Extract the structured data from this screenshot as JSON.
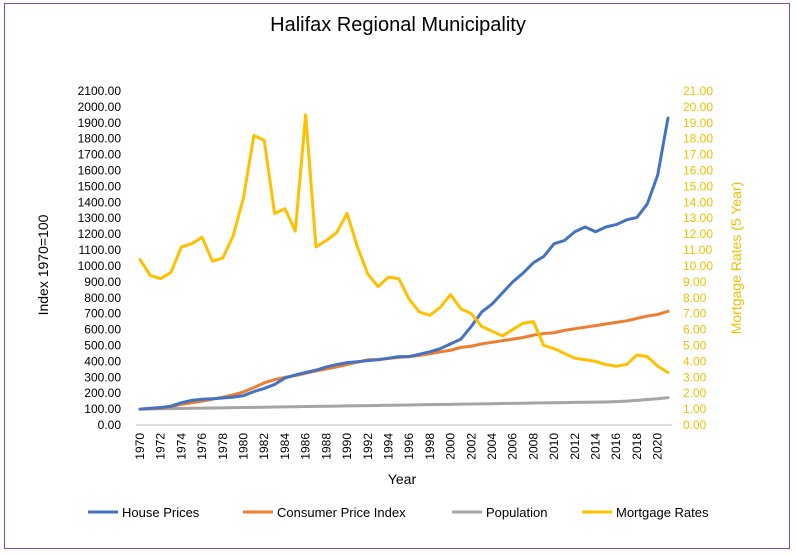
{
  "chart_data": {
    "type": "line",
    "title": "Halifax Regional Municipality",
    "xlabel": "Year",
    "ylabel": "Index 1970=100",
    "y2label": "Mortgage Rates (5 Year)",
    "ylim": [
      0,
      2100
    ],
    "y2lim": [
      0,
      21
    ],
    "yticks": [
      "0.00",
      "100.00",
      "200.00",
      "300.00",
      "400.00",
      "500.00",
      "600.00",
      "700.00",
      "800.00",
      "900.00",
      "1000.00",
      "1100.00",
      "1200.00",
      "1300.00",
      "1400.00",
      "1500.00",
      "1600.00",
      "1700.00",
      "1800.00",
      "1900.00",
      "2000.00",
      "2100.00"
    ],
    "y2ticks": [
      "0.00",
      "1.00",
      "2.00",
      "3.00",
      "4.00",
      "5.00",
      "6.00",
      "7.00",
      "8.00",
      "9.00",
      "10.00",
      "11.00",
      "12.00",
      "13.00",
      "14.00",
      "15.00",
      "16.00",
      "17.00",
      "18.00",
      "19.00",
      "20.00",
      "21.00"
    ],
    "xticks": [
      "1970",
      "1972",
      "1974",
      "1976",
      "1978",
      "1980",
      "1982",
      "1984",
      "1986",
      "1988",
      "1990",
      "1992",
      "1994",
      "1996",
      "1998",
      "2000",
      "2002",
      "2004",
      "2006",
      "2008",
      "2010",
      "2012",
      "2014",
      "2016",
      "2018",
      "2020"
    ],
    "x": [
      1970,
      1971,
      1972,
      1973,
      1974,
      1975,
      1976,
      1977,
      1978,
      1979,
      1980,
      1981,
      1982,
      1983,
      1984,
      1985,
      1986,
      1987,
      1988,
      1989,
      1990,
      1991,
      1992,
      1993,
      1994,
      1995,
      1996,
      1997,
      1998,
      1999,
      2000,
      2001,
      2002,
      2003,
      2004,
      2005,
      2006,
      2007,
      2008,
      2009,
      2010,
      2011,
      2012,
      2013,
      2014,
      2015,
      2016,
      2017,
      2018,
      2019,
      2020,
      2021
    ],
    "legend_position": "bottom",
    "grid": false,
    "series": [
      {
        "name": "House Prices",
        "axis": "left",
        "color": "#4472c4",
        "values": [
          100,
          105,
          110,
          118,
          140,
          155,
          162,
          165,
          170,
          175,
          185,
          210,
          230,
          255,
          295,
          315,
          330,
          345,
          365,
          380,
          392,
          398,
          405,
          410,
          420,
          430,
          430,
          445,
          460,
          480,
          510,
          540,
          620,
          710,
          760,
          830,
          900,
          955,
          1020,
          1060,
          1140,
          1160,
          1215,
          1245,
          1215,
          1245,
          1260,
          1290,
          1305,
          1390,
          1570,
          1930
        ]
      },
      {
        "name": "Consumer Price Index",
        "axis": "left",
        "color": "#ed7d31",
        "values": [
          100,
          103,
          108,
          115,
          130,
          140,
          150,
          162,
          175,
          190,
          208,
          235,
          265,
          285,
          300,
          310,
          325,
          340,
          352,
          365,
          380,
          395,
          410,
          412,
          418,
          425,
          430,
          438,
          448,
          460,
          470,
          488,
          495,
          510,
          520,
          530,
          540,
          550,
          565,
          575,
          580,
          595,
          605,
          615,
          625,
          635,
          645,
          655,
          670,
          685,
          695,
          715
        ]
      },
      {
        "name": "Population",
        "axis": "left",
        "color": "#a5a5a5",
        "values": [
          100,
          101,
          102,
          103,
          104,
          105,
          106,
          107,
          108,
          109,
          110,
          111,
          112,
          113,
          114,
          115,
          116,
          117,
          118,
          119,
          120,
          121,
          122,
          123,
          124,
          125,
          126,
          127,
          128,
          129,
          130,
          131,
          132,
          133,
          134,
          135,
          136,
          137,
          138,
          139,
          140,
          141,
          142,
          143,
          144,
          145,
          147,
          150,
          155,
          160,
          165,
          172
        ]
      },
      {
        "name": "Mortgage Rates",
        "axis": "right",
        "color": "#ffc000",
        "values": [
          10.4,
          9.4,
          9.2,
          9.6,
          11.2,
          11.4,
          11.8,
          10.3,
          10.5,
          11.9,
          14.3,
          18.2,
          17.9,
          13.3,
          13.6,
          12.2,
          19.5,
          11.2,
          11.6,
          12.1,
          13.3,
          11.2,
          9.5,
          8.7,
          9.3,
          9.2,
          7.9,
          7.1,
          6.9,
          7.4,
          8.2,
          7.3,
          7.0,
          6.2,
          5.9,
          5.6,
          6.0,
          6.4,
          6.5,
          5.0,
          4.8,
          4.5,
          4.2,
          4.1,
          4.0,
          3.8,
          3.7,
          3.8,
          4.4,
          4.3,
          3.7,
          3.3
        ]
      }
    ]
  }
}
